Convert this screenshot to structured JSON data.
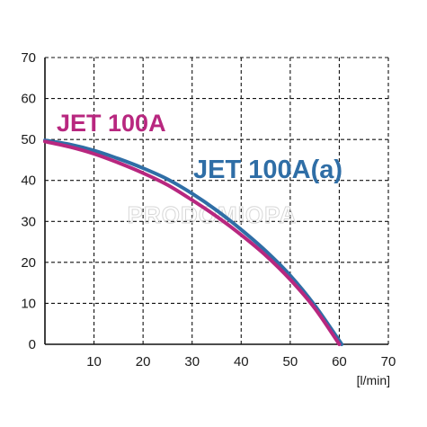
{
  "chart_data": {
    "type": "line",
    "xlim": [
      0,
      70
    ],
    "ylim": [
      0,
      70
    ],
    "x_ticks": [
      10,
      20,
      30,
      40,
      50,
      60,
      70
    ],
    "y_ticks": [
      0,
      10,
      20,
      30,
      40,
      50,
      60,
      70
    ],
    "x_unit_label": "[l/min]",
    "grid": true,
    "series": [
      {
        "name": "JET 100A",
        "color": "#b8277f",
        "x": [
          0,
          5,
          10,
          15,
          20,
          25,
          30,
          35,
          40,
          45,
          50,
          55,
          60
        ],
        "y": [
          49.5,
          48.2,
          46.5,
          44.3,
          41.8,
          38.9,
          35.2,
          31.2,
          26.7,
          21.7,
          15.8,
          8.8,
          0
        ]
      },
      {
        "name": "JET 100A(a)",
        "color": "#2f6ea6",
        "x": [
          0,
          5,
          10,
          15,
          20,
          25,
          30,
          35,
          40,
          45,
          50,
          55,
          60.5
        ],
        "y": [
          49.8,
          48.8,
          47.3,
          45.3,
          43.0,
          40.3,
          36.8,
          32.7,
          28.0,
          22.8,
          16.8,
          9.5,
          0
        ]
      }
    ],
    "watermark": "PRODOMIOPA"
  }
}
